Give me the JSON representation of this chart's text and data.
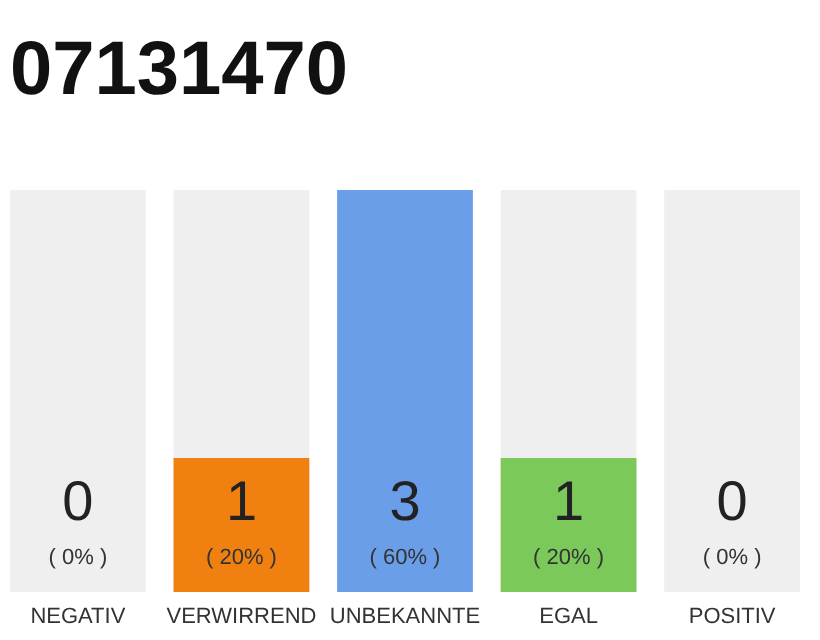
{
  "chart_data": {
    "type": "bar",
    "title": "07131470",
    "categories": [
      "NEGATIV",
      "VERWIRREND",
      "UNBEKANNTE",
      "EGAL",
      "POSITIV"
    ],
    "values": [
      0,
      20,
      60,
      20,
      0
    ],
    "colors": [
      "#f08010",
      "#f08010",
      "#6a9ee8",
      "#7ac95a",
      "#7ac95a"
    ],
    "value_labels": [
      "( 0% )",
      "( 20% )",
      "( 60% )",
      "( 20% )",
      "( 0% )"
    ],
    "annotations": [
      "0",
      "1",
      "3",
      "1",
      "0"
    ],
    "bands": [
      {
        "axis": "x",
        "from": "NEGATIV",
        "to": "NEGATIV",
        "color": "#efefef"
      },
      {
        "axis": "x",
        "from": "VERWIRREND",
        "to": "VERWIRREND",
        "color": "#efefef"
      },
      {
        "axis": "x",
        "from": "EGAL",
        "to": "EGAL",
        "color": "#efefef"
      },
      {
        "axis": "x",
        "from": "POSITIV",
        "to": "POSITIV",
        "color": "#efefef"
      }
    ]
  }
}
